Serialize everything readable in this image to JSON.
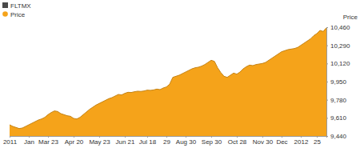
{
  "chart_data": {
    "type": "area",
    "title": "FLTMX",
    "y_label": "Price",
    "categories": [
      "2011",
      null,
      null,
      null,
      null,
      null,
      "Jan",
      null,
      null,
      null,
      null,
      null,
      "Mar 23",
      null,
      null,
      null,
      null,
      null,
      null,
      null,
      "Apr 20",
      null,
      null,
      null,
      null,
      null,
      null,
      null,
      "May 23",
      null,
      null,
      null,
      null,
      null,
      null,
      null,
      "Jun 21",
      null,
      null,
      null,
      null,
      null,
      null,
      "Jul 18",
      null,
      null,
      null,
      null,
      null,
      "29",
      null,
      null,
      null,
      null,
      null,
      "Aug 30",
      null,
      null,
      null,
      null,
      null,
      null,
      null,
      "Sep 30",
      null,
      null,
      null,
      null,
      null,
      null,
      null,
      "Oct 28",
      null,
      null,
      null,
      null,
      null,
      null,
      null,
      "Nov 30",
      null,
      null,
      null,
      null,
      null,
      "Dec",
      null,
      null,
      null,
      null,
      null,
      "2012",
      null,
      null,
      null,
      null,
      "25",
      null,
      null,
      null
    ],
    "series": [
      {
        "name": "Price",
        "color": "#f5a31a",
        "values": [
          9545,
          9530,
          9520,
          9510,
          9515,
          9530,
          9545,
          9560,
          9575,
          9590,
          9600,
          9615,
          9640,
          9660,
          9675,
          9670,
          9650,
          9640,
          9630,
          9625,
          9605,
          9600,
          9615,
          9640,
          9665,
          9690,
          9710,
          9730,
          9745,
          9760,
          9775,
          9790,
          9800,
          9815,
          9830,
          9825,
          9840,
          9850,
          9848,
          9855,
          9860,
          9858,
          9862,
          9870,
          9868,
          9872,
          9880,
          9875,
          9890,
          9900,
          9925,
          9990,
          10000,
          10010,
          10025,
          10040,
          10055,
          10070,
          10080,
          10085,
          10095,
          10110,
          10130,
          10150,
          10140,
          10080,
          10035,
          10000,
          9990,
          10010,
          10030,
          10020,
          10040,
          10070,
          10090,
          10105,
          10100,
          10110,
          10115,
          10120,
          10130,
          10150,
          10170,
          10190,
          10210,
          10230,
          10240,
          10250,
          10255,
          10260,
          10270,
          10290,
          10310,
          10330,
          10350,
          10380,
          10400,
          10430,
          10420,
          10455
        ]
      }
    ],
    "ylim": [
      9440,
      10460
    ],
    "yticks": [
      {
        "value": 9440,
        "label": "9,440"
      },
      {
        "value": 9610,
        "label": "9,610"
      },
      {
        "value": 9780,
        "label": "9,780"
      },
      {
        "value": 9950,
        "label": "9,950"
      },
      {
        "value": 10120,
        "label": "10,120"
      },
      {
        "value": 10290,
        "label": "10,290"
      },
      {
        "value": 10460,
        "label": "10,460"
      }
    ],
    "grid": false,
    "legend": "top-left"
  }
}
